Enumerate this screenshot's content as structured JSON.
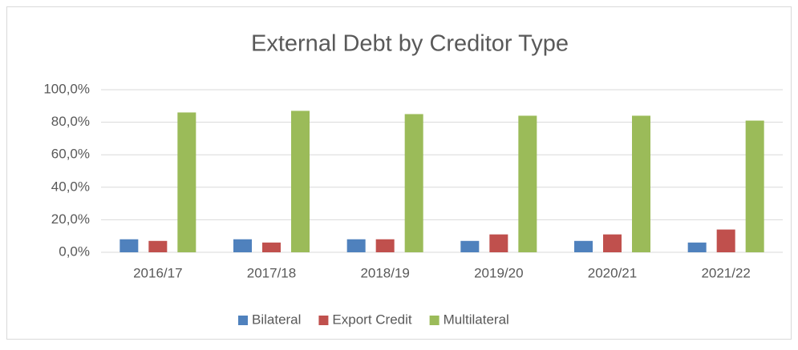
{
  "chart_data": {
    "type": "bar",
    "title": "External Debt by Creditor Type",
    "categories": [
      "2016/17",
      "2017/18",
      "2018/19",
      "2019/20",
      "2020/21",
      "2021/22"
    ],
    "series": [
      {
        "name": "Bilateral",
        "color": "#4f81bd",
        "values": [
          8,
          8,
          8,
          7,
          7,
          6
        ]
      },
      {
        "name": "Export Credit",
        "color": "#c0504d",
        "values": [
          7,
          6,
          8,
          11,
          11,
          14
        ]
      },
      {
        "name": "Multilateral",
        "color": "#9bbb59",
        "values": [
          86,
          87,
          85,
          84,
          84,
          81
        ]
      }
    ],
    "ylim": [
      0,
      100
    ],
    "yticks": [
      {
        "value": 0,
        "label": "0,0%"
      },
      {
        "value": 20,
        "label": "20,0%"
      },
      {
        "value": 40,
        "label": "40,0%"
      },
      {
        "value": 60,
        "label": "60,0%"
      },
      {
        "value": 80,
        "label": "80,0%"
      },
      {
        "value": 100,
        "label": "100,0%"
      }
    ],
    "grid": true,
    "legend": "bottom"
  }
}
